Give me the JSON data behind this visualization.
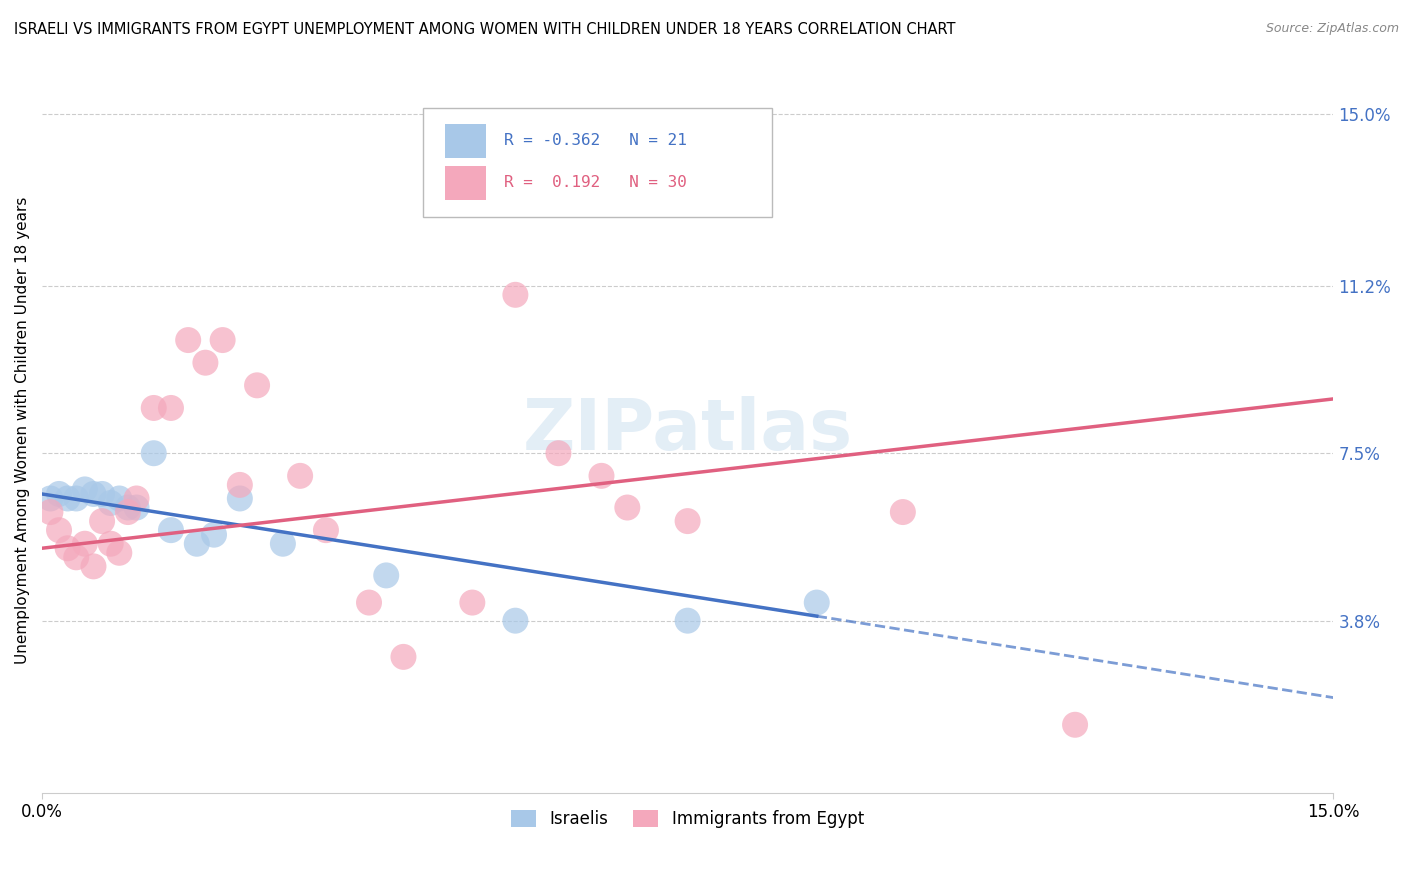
{
  "title": "ISRAELI VS IMMIGRANTS FROM EGYPT UNEMPLOYMENT AMONG WOMEN WITH CHILDREN UNDER 18 YEARS CORRELATION CHART",
  "source": "Source: ZipAtlas.com",
  "ylabel": "Unemployment Among Women with Children Under 18 years",
  "ytick_labels": [
    "15.0%",
    "11.2%",
    "7.5%",
    "3.8%"
  ],
  "ytick_values": [
    0.15,
    0.112,
    0.075,
    0.038
  ],
  "xlim": [
    0.0,
    0.15
  ],
  "ylim": [
    0.0,
    0.16
  ],
  "legend_r_israeli": "-0.362",
  "legend_n_israeli": "21",
  "legend_r_egypt": "0.192",
  "legend_n_egypt": "30",
  "israeli_color": "#a8c8e8",
  "egypt_color": "#f4a8bc",
  "israeli_line_color": "#4472c4",
  "egypt_line_color": "#e06080",
  "israeli_x": [
    0.001,
    0.002,
    0.003,
    0.004,
    0.005,
    0.006,
    0.007,
    0.008,
    0.009,
    0.01,
    0.011,
    0.013,
    0.015,
    0.018,
    0.02,
    0.023,
    0.028,
    0.04,
    0.055,
    0.075,
    0.09
  ],
  "israeli_y": [
    0.065,
    0.066,
    0.065,
    0.065,
    0.067,
    0.066,
    0.066,
    0.064,
    0.065,
    0.063,
    0.063,
    0.075,
    0.058,
    0.055,
    0.057,
    0.065,
    0.055,
    0.048,
    0.038,
    0.038,
    0.042
  ],
  "egypt_x": [
    0.001,
    0.002,
    0.003,
    0.004,
    0.005,
    0.006,
    0.007,
    0.008,
    0.009,
    0.01,
    0.011,
    0.013,
    0.015,
    0.017,
    0.019,
    0.021,
    0.023,
    0.025,
    0.03,
    0.033,
    0.038,
    0.042,
    0.05,
    0.055,
    0.06,
    0.065,
    0.068,
    0.075,
    0.1,
    0.12
  ],
  "egypt_y": [
    0.062,
    0.058,
    0.054,
    0.052,
    0.055,
    0.05,
    0.06,
    0.055,
    0.053,
    0.062,
    0.065,
    0.085,
    0.085,
    0.1,
    0.095,
    0.1,
    0.068,
    0.09,
    0.07,
    0.058,
    0.042,
    0.03,
    0.042,
    0.11,
    0.075,
    0.07,
    0.063,
    0.06,
    0.062,
    0.015
  ]
}
